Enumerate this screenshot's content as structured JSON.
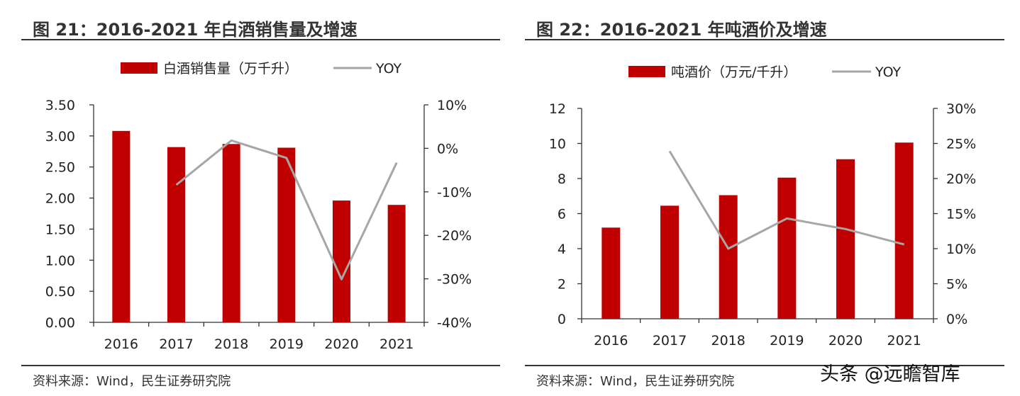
{
  "charts": [
    {
      "title": "图 21：2016-2021 年白酒销售量及增速",
      "source": "资料来源：Wind，民生证券研究院"
    },
    {
      "title": "图 22：2016-2021 年吨酒价及增速",
      "source": "资料来源：Wind，民生证券研究院"
    }
  ],
  "watermark": "头条 @远瞻智库",
  "colors": {
    "bar": "#c00000",
    "line": "#a6a6a6",
    "axis": "#333333",
    "text": "#222222"
  },
  "chart_data": [
    {
      "type": "bar",
      "title": "图 21：2016-2021 年白酒销售量及增速",
      "categories": [
        "2016",
        "2017",
        "2018",
        "2019",
        "2020",
        "2021"
      ],
      "series": [
        {
          "name": "白酒销售量（万千升）",
          "type": "bar",
          "axis": "left",
          "values": [
            3.08,
            2.82,
            2.87,
            2.81,
            1.96,
            1.89
          ]
        },
        {
          "name": "YOY",
          "type": "line",
          "axis": "right",
          "values": [
            null,
            -8.4,
            1.8,
            -2.2,
            -30.1,
            -3.3
          ]
        }
      ],
      "ylim": [
        0,
        3.5
      ],
      "yticks": [
        "0.00",
        "0.50",
        "1.00",
        "1.50",
        "2.00",
        "2.50",
        "3.00",
        "3.50"
      ],
      "y2lim": [
        -40,
        10
      ],
      "y2ticks": [
        "-40%",
        "-30%",
        "-20%",
        "-10%",
        "0%",
        "10%"
      ],
      "legend": "top-center",
      "grid": false
    },
    {
      "type": "bar",
      "title": "图 22：2016-2021 年吨酒价及增速",
      "categories": [
        "2016",
        "2017",
        "2018",
        "2019",
        "2020",
        "2021"
      ],
      "series": [
        {
          "name": "吨酒价（万元/千升）",
          "type": "bar",
          "axis": "left",
          "values": [
            5.2,
            6.45,
            7.05,
            8.05,
            9.1,
            10.05
          ]
        },
        {
          "name": "YOY",
          "type": "line",
          "axis": "right",
          "values": [
            null,
            23.9,
            10.0,
            14.3,
            12.8,
            10.6
          ]
        }
      ],
      "ylim": [
        0,
        12
      ],
      "yticks": [
        "0",
        "2",
        "4",
        "6",
        "8",
        "10",
        "12"
      ],
      "y2lim": [
        0,
        30
      ],
      "y2ticks": [
        "0%",
        "5%",
        "10%",
        "15%",
        "20%",
        "25%",
        "30%"
      ],
      "legend": "top-center",
      "grid": false
    }
  ]
}
